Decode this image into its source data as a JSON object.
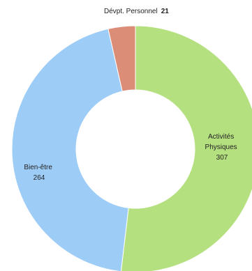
{
  "chart_data": {
    "type": "pie",
    "donut": true,
    "title": "",
    "categories": [
      "Activités Physiques",
      "Bien-être",
      "Dévpt. Personnel"
    ],
    "values": [
      307,
      264,
      21
    ],
    "colors": [
      "#b5e080",
      "#9dccf7",
      "#dc8d78"
    ],
    "labels": [
      {
        "lines": [
          "Activités",
          "Physiques"
        ],
        "value": "307"
      },
      {
        "lines": [
          "Bien-être"
        ],
        "value": "264"
      },
      {
        "lines": [
          "Dévpt. Personnel"
        ],
        "value": "21"
      }
    ],
    "legend": "none"
  }
}
